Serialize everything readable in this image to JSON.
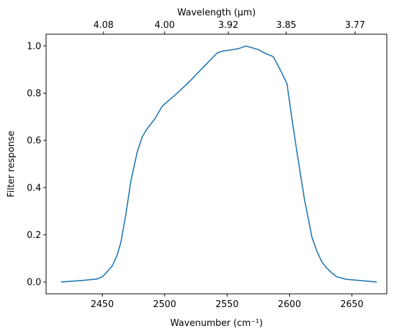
{
  "chart_data": {
    "type": "line",
    "xlabel": "Wavenumber (cm⁻¹)",
    "ylabel": "Filter response",
    "top_xlabel": "Wavelength (μm)",
    "xlim": [
      2405,
      2678
    ],
    "ylim": [
      -0.05,
      1.05
    ],
    "x_ticks": [
      2450,
      2500,
      2550,
      2600,
      2650
    ],
    "y_ticks": [
      0.0,
      0.2,
      0.4,
      0.6,
      0.8,
      1.0
    ],
    "y_tick_labels": [
      "0.0",
      "0.2",
      "0.4",
      "0.6",
      "0.8",
      "1.0"
    ],
    "top_ticks": [
      {
        "label": "4.08",
        "um": 4.08
      },
      {
        "label": "4.00",
        "um": 4.0
      },
      {
        "label": "3.92",
        "um": 3.92
      },
      {
        "label": "3.85",
        "um": 3.85
      },
      {
        "label": "3.77",
        "um": 3.77
      }
    ],
    "series": [
      {
        "color": "#1f77b4",
        "x": [
          2417,
          2435,
          2446,
          2450,
          2453,
          2458,
          2462,
          2465,
          2469,
          2473,
          2478,
          2482,
          2486,
          2492,
          2498,
          2510,
          2520,
          2530,
          2542,
          2546,
          2555,
          2560,
          2565,
          2575,
          2580,
          2587,
          2594,
          2598,
          2602,
          2606,
          2612,
          2618,
          2622,
          2626,
          2630,
          2634,
          2638,
          2645,
          2655,
          2670
        ],
        "y": [
          0.0,
          0.007,
          0.013,
          0.022,
          0.038,
          0.068,
          0.115,
          0.17,
          0.29,
          0.43,
          0.55,
          0.615,
          0.65,
          0.69,
          0.745,
          0.8,
          0.85,
          0.905,
          0.97,
          0.978,
          0.985,
          0.99,
          1.0,
          0.985,
          0.97,
          0.955,
          0.885,
          0.84,
          0.69,
          0.55,
          0.35,
          0.19,
          0.13,
          0.085,
          0.058,
          0.038,
          0.022,
          0.012,
          0.007,
          0.0
        ]
      }
    ]
  }
}
